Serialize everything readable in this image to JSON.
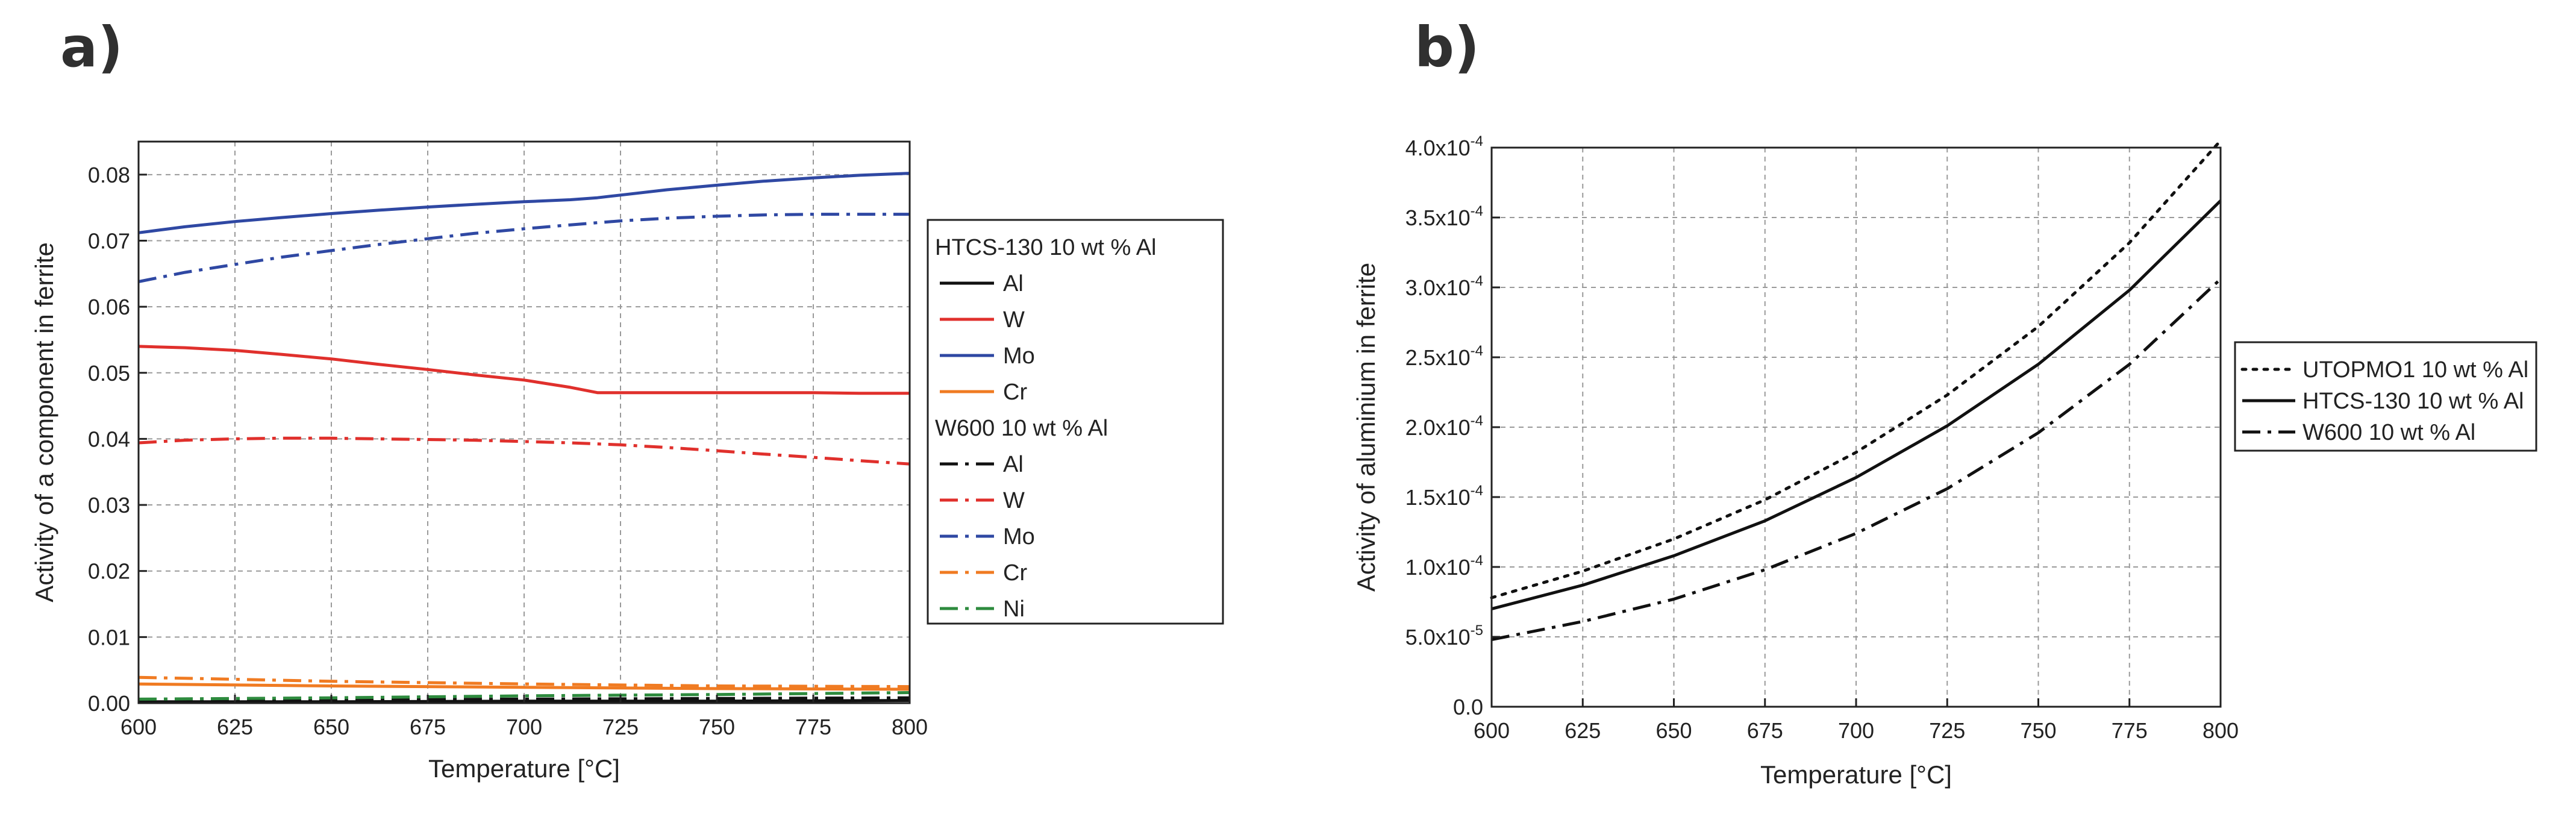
{
  "chart_data": [
    {
      "panel": "a)",
      "type": "line",
      "xlabel": "Temperature [°C]",
      "ylabel": "Activity of a component in ferrite",
      "xlim": [
        600,
        800
      ],
      "ylim": [
        0,
        0.085
      ],
      "xticks": [
        600,
        625,
        650,
        675,
        700,
        725,
        750,
        775,
        800
      ],
      "yticks": [
        0.0,
        0.01,
        0.02,
        0.03,
        0.04,
        0.05,
        0.06,
        0.07,
        0.08
      ],
      "ytick_labels": [
        "0.00",
        "0.01",
        "0.02",
        "0.03",
        "0.04",
        "0.05",
        "0.06",
        "0.07",
        "0.08"
      ],
      "grid": true,
      "legend_location": "outside-right",
      "legend_groups": [
        {
          "title": "HTCS-130 10 wt % Al",
          "entries": [
            0,
            1,
            2,
            3
          ]
        },
        {
          "title": "W600 10 wt % Al",
          "entries": [
            4,
            5,
            6,
            7,
            8
          ]
        }
      ],
      "series": [
        {
          "name": "Al",
          "group": "HTCS-130 10 wt % Al",
          "color": "#111111",
          "style": "solid",
          "x": [
            600,
            650,
            700,
            750,
            800
          ],
          "values": [
            0.0002,
            0.0002,
            0.0003,
            0.0003,
            0.0004
          ]
        },
        {
          "name": "W",
          "group": "HTCS-130 10 wt % Al",
          "color": "#e0302c",
          "style": "solid",
          "x": [
            600,
            612,
            625,
            637,
            650,
            662,
            675,
            687,
            700,
            712,
            719,
            725,
            737,
            750,
            762,
            775,
            787,
            800
          ],
          "values": [
            0.054,
            0.0538,
            0.0534,
            0.0528,
            0.0521,
            0.0513,
            0.0505,
            0.0497,
            0.0489,
            0.0478,
            0.047,
            0.047,
            0.047,
            0.047,
            0.047,
            0.047,
            0.0469,
            0.0469
          ]
        },
        {
          "name": "Mo",
          "group": "HTCS-130 10 wt % Al",
          "color": "#2f48a3",
          "style": "solid",
          "x": [
            600,
            612,
            625,
            637,
            650,
            662,
            675,
            687,
            700,
            712,
            719,
            725,
            737,
            750,
            762,
            775,
            787,
            800
          ],
          "values": [
            0.0712,
            0.0721,
            0.0729,
            0.0735,
            0.0741,
            0.0746,
            0.0751,
            0.0755,
            0.0759,
            0.0762,
            0.0765,
            0.0769,
            0.0777,
            0.0784,
            0.079,
            0.0795,
            0.0799,
            0.0802
          ]
        },
        {
          "name": "Cr",
          "group": "HTCS-130 10 wt % Al",
          "color": "#f07b22",
          "style": "solid",
          "x": [
            600,
            650,
            700,
            750,
            800
          ],
          "values": [
            0.0029,
            0.0026,
            0.0024,
            0.0022,
            0.0021
          ]
        },
        {
          "name": "Al",
          "group": "W600 10 wt % Al",
          "color": "#111111",
          "style": "dashdot",
          "x": [
            600,
            650,
            700,
            750,
            800
          ],
          "values": [
            0.0004,
            0.0005,
            0.0006,
            0.0007,
            0.0008
          ]
        },
        {
          "name": "W",
          "group": "W600 10 wt % Al",
          "color": "#e0302c",
          "style": "dashdot",
          "x": [
            600,
            612,
            625,
            637,
            650,
            662,
            675,
            687,
            700,
            712,
            725,
            737,
            750,
            762,
            775,
            787,
            800
          ],
          "values": [
            0.0394,
            0.0398,
            0.04,
            0.0401,
            0.0401,
            0.04,
            0.0399,
            0.0398,
            0.0396,
            0.0394,
            0.0391,
            0.0387,
            0.0382,
            0.0377,
            0.0372,
            0.0367,
            0.0362
          ]
        },
        {
          "name": "Mo",
          "group": "W600 10 wt % Al",
          "color": "#2f48a3",
          "style": "dashdot",
          "x": [
            600,
            612,
            625,
            637,
            650,
            662,
            675,
            687,
            700,
            712,
            725,
            737,
            750,
            762,
            775,
            787,
            800
          ],
          "values": [
            0.0638,
            0.0652,
            0.0664,
            0.0675,
            0.0685,
            0.0694,
            0.0703,
            0.0711,
            0.0718,
            0.0724,
            0.073,
            0.0734,
            0.0737,
            0.0739,
            0.074,
            0.074,
            0.074
          ]
        },
        {
          "name": "Cr",
          "group": "W600 10 wt % Al",
          "color": "#f07b22",
          "style": "dashdot",
          "x": [
            600,
            650,
            700,
            750,
            800
          ],
          "values": [
            0.0039,
            0.0033,
            0.0029,
            0.0026,
            0.0025
          ]
        },
        {
          "name": "Ni",
          "group": "W600 10 wt % Al",
          "color": "#2e8b3e",
          "style": "dashdot",
          "x": [
            600,
            650,
            700,
            750,
            800
          ],
          "values": [
            0.0006,
            0.0008,
            0.0011,
            0.0013,
            0.0016
          ]
        }
      ]
    },
    {
      "panel": "b)",
      "type": "line",
      "xlabel": "Temperature [°C]",
      "ylabel": "Activity of aluminium in ferrite",
      "xlim": [
        600,
        800
      ],
      "ylim": [
        0,
        0.0004
      ],
      "xticks": [
        600,
        625,
        650,
        675,
        700,
        725,
        750,
        775,
        800
      ],
      "yticks": [
        0,
        5e-05,
        0.0001,
        0.00015,
        0.0002,
        0.00025,
        0.0003,
        0.00035,
        0.0004
      ],
      "ytick_labels": [
        {
          "mant": "0.0",
          "exp": ""
        },
        {
          "mant": "5.0x10",
          "exp": "-5"
        },
        {
          "mant": "1.0x10",
          "exp": "-4"
        },
        {
          "mant": "1.5x10",
          "exp": "-4"
        },
        {
          "mant": "2.0x10",
          "exp": "-4"
        },
        {
          "mant": "2.5x10",
          "exp": "-4"
        },
        {
          "mant": "3.0x10",
          "exp": "-4"
        },
        {
          "mant": "3.5x10",
          "exp": "-4"
        },
        {
          "mant": "4.0x10",
          "exp": "-4"
        }
      ],
      "grid": true,
      "legend_location": "outside-right",
      "series": [
        {
          "name": "UTOPMO1 10 wt % Al",
          "color": "#111111",
          "style": "dotted",
          "x": [
            600,
            625,
            650,
            675,
            700,
            725,
            750,
            775,
            800
          ],
          "values": [
            7.8e-05,
            9.7e-05,
            0.00012,
            0.000148,
            0.000182,
            0.000223,
            0.000272,
            0.000332,
            0.000405
          ]
        },
        {
          "name": "HTCS-130 10 wt % Al",
          "color": "#111111",
          "style": "solid",
          "x": [
            600,
            625,
            650,
            675,
            700,
            725,
            750,
            775,
            800
          ],
          "values": [
            7e-05,
            8.7e-05,
            0.000108,
            0.000133,
            0.000164,
            0.000201,
            0.000245,
            0.000298,
            0.000362
          ]
        },
        {
          "name": "W600 10 wt % Al",
          "color": "#111111",
          "style": "dashdot",
          "x": [
            600,
            625,
            650,
            675,
            700,
            725,
            750,
            775,
            800
          ],
          "values": [
            4.8e-05,
            6.1e-05,
            7.7e-05,
            9.8e-05,
            0.000124,
            0.000156,
            0.000196,
            0.000245,
            0.000306
          ]
        }
      ]
    }
  ]
}
